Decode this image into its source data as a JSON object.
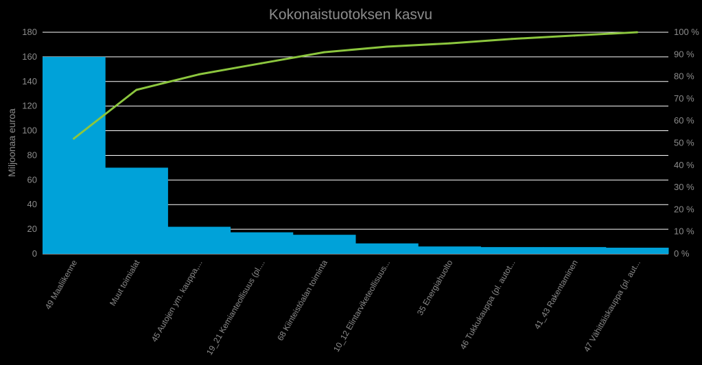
{
  "chart_data": {
    "type": "bar",
    "title": "Kokonaistuotoksen kasvu",
    "xlabel": "",
    "ylabel": "Miljoonaa euroa",
    "categories": [
      "49 Maaliikenne",
      "Muut toimialat",
      "45 Autojen ym. kauppa,...",
      "19_21 Kemianteollisuus (pl....",
      "68 Kiinteistöalan toiminta",
      "10_12 Elintarviketeollisuus...",
      "35 Energiahuolto",
      "46 Tukkukauppa (pl. autot...",
      "41_43 Rakentaminen",
      "47 Vähittäiskauppa (pl. aut..."
    ],
    "series": [
      {
        "name": "",
        "type": "bar",
        "axis": "left",
        "color": "#00a2d9",
        "values": [
          160,
          70,
          22,
          17.5,
          15.5,
          8.5,
          6,
          5.5,
          5.5,
          5
        ]
      },
      {
        "name": "",
        "type": "line",
        "axis": "right",
        "color": "#8cc63e",
        "values": [
          52,
          74,
          81,
          86,
          91,
          93.5,
          95,
          97,
          98.5,
          100
        ]
      }
    ],
    "ylim": [
      0,
      180
    ],
    "yticks": [
      "0",
      "20",
      "40",
      "60",
      "80",
      "100",
      "120",
      "140",
      "160",
      "180"
    ],
    "y2lim": [
      0,
      100
    ],
    "y2ticks": [
      "0 %",
      "10 %",
      "20 %",
      "30 %",
      "40 %",
      "50 %",
      "60 %",
      "70 %",
      "80 %",
      "90 %",
      "100 %"
    ],
    "grid": true,
    "legend": "none",
    "colors": {
      "background": "#000000",
      "plot_background": "#000000",
      "gridline": "#ffffff",
      "text": "#8c8c8c"
    }
  }
}
